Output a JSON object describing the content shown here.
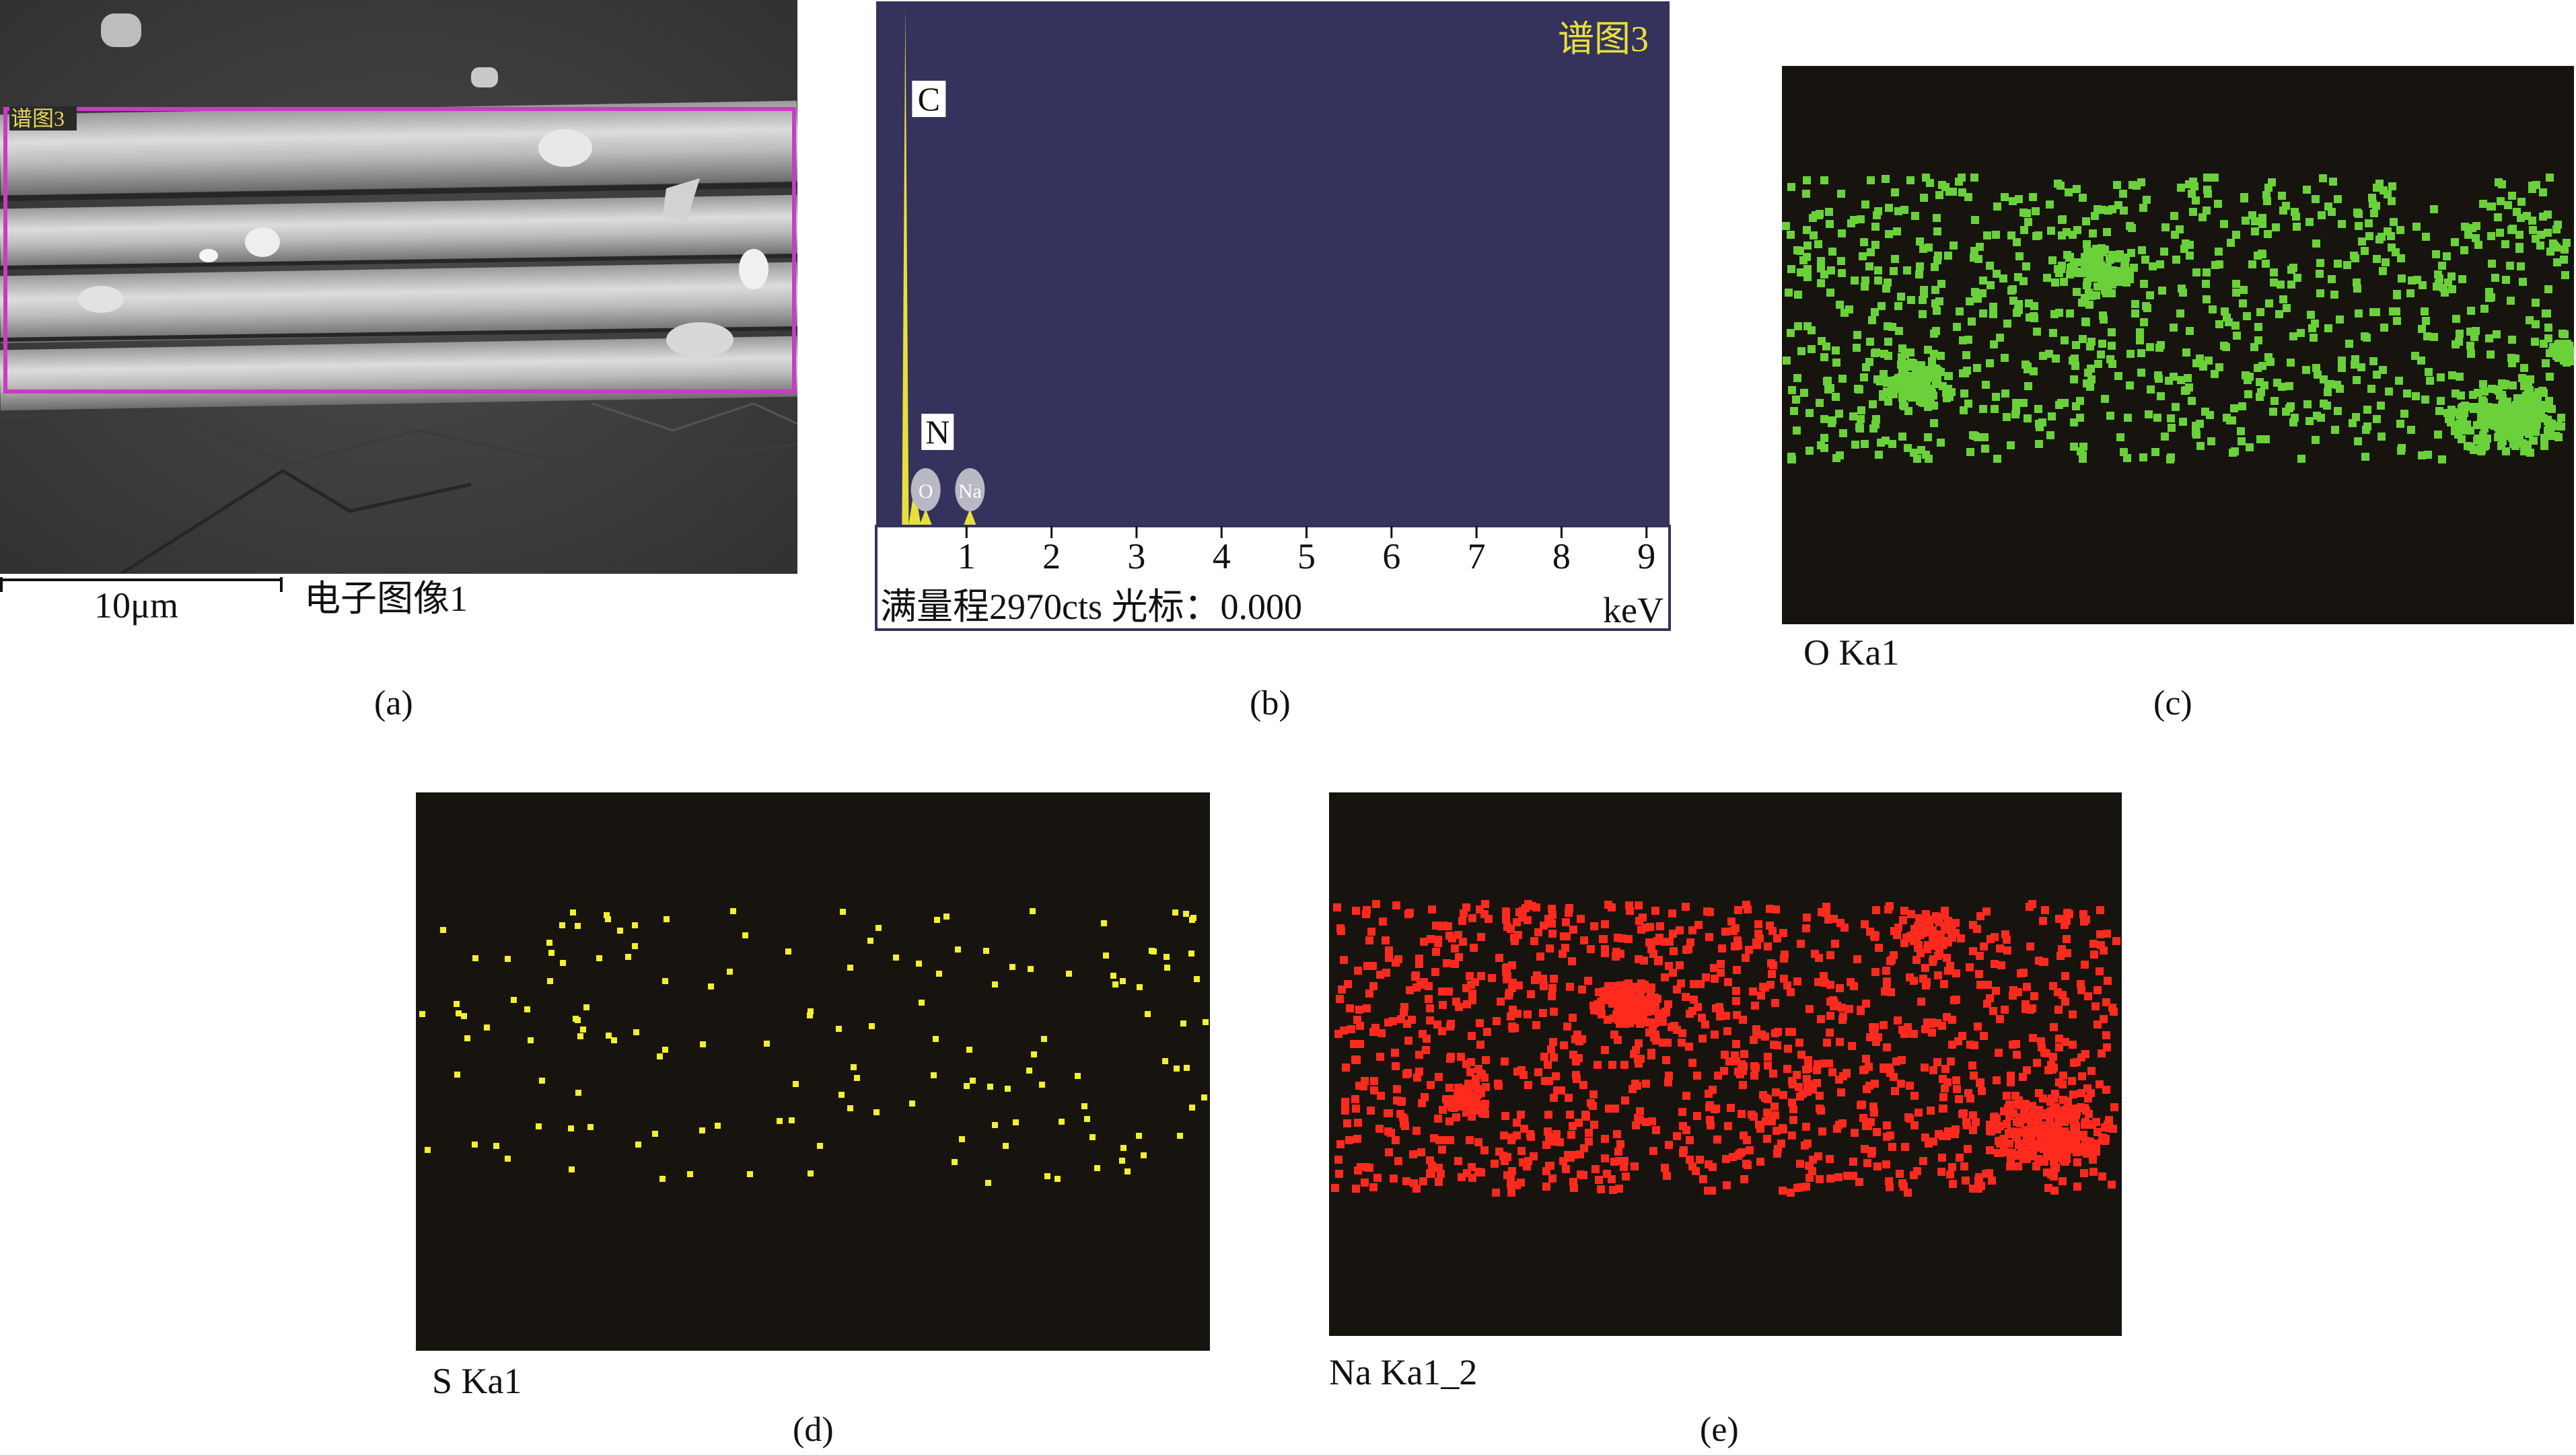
{
  "figure": {
    "panels": [
      {
        "id": "a",
        "label": "(a)"
      },
      {
        "id": "b",
        "label": "(b)"
      },
      {
        "id": "c",
        "label": "(c)"
      },
      {
        "id": "d",
        "label": "(d)"
      },
      {
        "id": "e",
        "label": "(e)"
      }
    ]
  },
  "sem": {
    "region_label": "谱图3",
    "scale_bar_label": "10μm",
    "image_title": "电子图像1"
  },
  "spectrum": {
    "title": "谱图3",
    "footer": "满量程2970cts 光标：0.000",
    "unit": "keV",
    "colors": {
      "background": "#35325d",
      "peak": "#e8e03a",
      "tick_area": "#ffffff"
    },
    "peak_labels": [
      "C",
      "N",
      "O",
      "Na"
    ]
  },
  "chart_data": {
    "type": "line",
    "title": "谱图3",
    "xlabel": "keV",
    "ylabel": "",
    "xlim": [
      0,
      9.2
    ],
    "x_ticks": [
      "1",
      "2",
      "3",
      "4",
      "5",
      "6",
      "7",
      "8",
      "9"
    ],
    "full_scale_counts": 2970,
    "cursor_keV": 0.0,
    "series": [
      {
        "element": "C",
        "energy_keV": 0.28,
        "counts": 2970
      },
      {
        "element": "N",
        "energy_keV": 0.39,
        "counts": 220
      },
      {
        "element": "O",
        "energy_keV": 0.52,
        "counts": 90
      },
      {
        "element": "Na",
        "energy_keV": 1.04,
        "counts": 90
      }
    ]
  },
  "maps": [
    {
      "id": "c",
      "label": "O Ka1",
      "color": "#6ad13a"
    },
    {
      "id": "d",
      "label": "S Ka1",
      "color": "#f3f02e"
    },
    {
      "id": "e",
      "label": "Na Ka1_2",
      "color": "#ff2a1e"
    }
  ]
}
